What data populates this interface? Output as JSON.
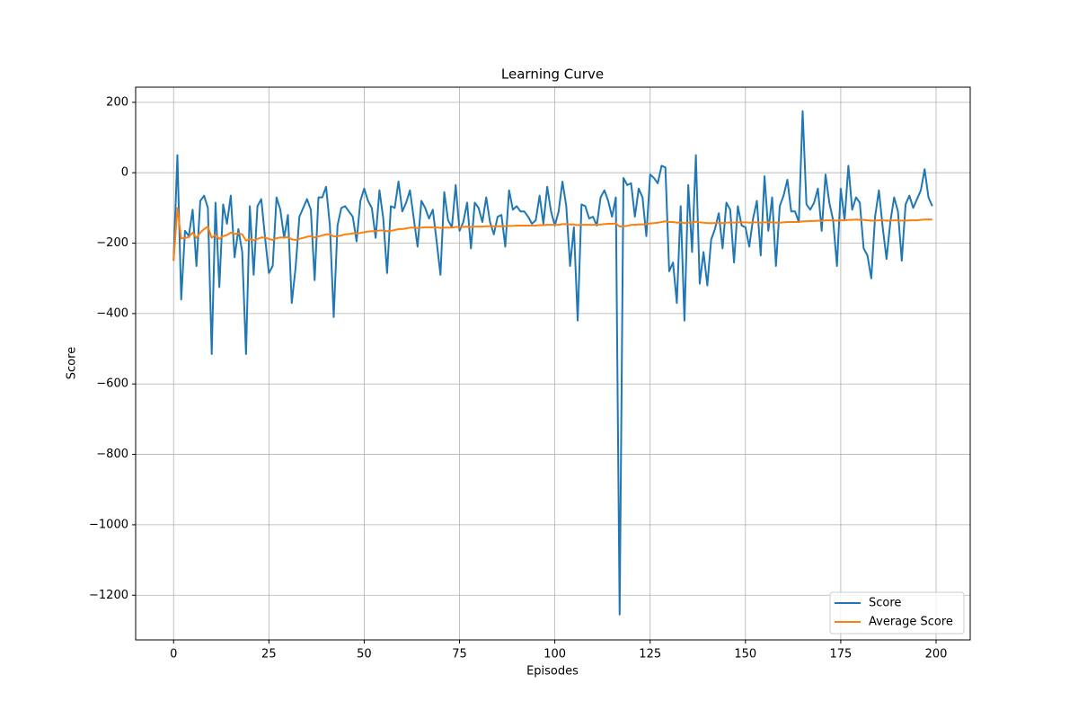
{
  "chart_data": {
    "type": "line",
    "title": "Learning Curve",
    "x_label": "Episodes",
    "y_label": "Score",
    "x": [
      0,
      1,
      2,
      3,
      4,
      5,
      6,
      7,
      8,
      9,
      10,
      11,
      12,
      13,
      14,
      15,
      16,
      17,
      18,
      19,
      20,
      21,
      22,
      23,
      24,
      25,
      26,
      27,
      28,
      29,
      30,
      31,
      32,
      33,
      34,
      35,
      36,
      37,
      38,
      39,
      40,
      41,
      42,
      43,
      44,
      45,
      46,
      47,
      48,
      49,
      50,
      51,
      52,
      53,
      54,
      55,
      56,
      57,
      58,
      59,
      60,
      61,
      62,
      63,
      64,
      65,
      66,
      67,
      68,
      69,
      70,
      71,
      72,
      73,
      74,
      75,
      76,
      77,
      78,
      79,
      80,
      81,
      82,
      83,
      84,
      85,
      86,
      87,
      88,
      89,
      90,
      91,
      92,
      93,
      94,
      95,
      96,
      97,
      98,
      99,
      100,
      101,
      102,
      103,
      104,
      105,
      106,
      107,
      108,
      109,
      110,
      111,
      112,
      113,
      114,
      115,
      116,
      117,
      118,
      119,
      120,
      121,
      122,
      123,
      124,
      125,
      126,
      127,
      128,
      129,
      130,
      131,
      132,
      133,
      134,
      135,
      136,
      137,
      138,
      139,
      140,
      141,
      142,
      143,
      144,
      145,
      146,
      147,
      148,
      149,
      150,
      151,
      152,
      153,
      154,
      155,
      156,
      157,
      158,
      159,
      160,
      161,
      162,
      163,
      164,
      165,
      166,
      167,
      168,
      169,
      170,
      171,
      172,
      173,
      174,
      175,
      176,
      177,
      178,
      179,
      180,
      181,
      182,
      183,
      184,
      185,
      186,
      187,
      188,
      189,
      190,
      191,
      192,
      193,
      194,
      195,
      196,
      197,
      198,
      199
    ],
    "series": [
      {
        "name": "Score",
        "color": "#1f77b4",
        "values": [
          -250,
          50,
          -360,
          -165,
          -180,
          -105,
          -265,
          -80,
          -65,
          -100,
          -515,
          -85,
          -325,
          -90,
          -145,
          -65,
          -240,
          -160,
          -225,
          -515,
          -95,
          -290,
          -95,
          -75,
          -185,
          -285,
          -265,
          -70,
          -105,
          -185,
          -120,
          -370,
          -270,
          -125,
          -100,
          -75,
          -105,
          -305,
          -70,
          -70,
          -40,
          -150,
          -410,
          -150,
          -100,
          -95,
          -110,
          -125,
          -195,
          -80,
          -45,
          -80,
          -100,
          -185,
          -50,
          -130,
          -285,
          -95,
          -100,
          -25,
          -110,
          -85,
          -50,
          -130,
          -210,
          -80,
          -100,
          -130,
          -105,
          -195,
          -290,
          -55,
          -135,
          -155,
          -35,
          -165,
          -140,
          -85,
          -215,
          -85,
          -100,
          -140,
          -70,
          -140,
          -175,
          -125,
          -120,
          -210,
          -50,
          -105,
          -95,
          -110,
          -110,
          -125,
          -145,
          -135,
          -65,
          -145,
          -40,
          -110,
          -150,
          -110,
          -25,
          -95,
          -265,
          -155,
          -420,
          -90,
          -95,
          -130,
          -125,
          -150,
          -70,
          -50,
          -80,
          -125,
          -70,
          -1255,
          -15,
          -35,
          -30,
          -125,
          -45,
          -70,
          -180,
          -5,
          -15,
          -30,
          20,
          15,
          -280,
          -255,
          -370,
          -95,
          -420,
          -35,
          -225,
          50,
          -315,
          -225,
          -320,
          -190,
          -160,
          -115,
          -215,
          -85,
          -105,
          -255,
          -95,
          -150,
          -155,
          -210,
          -130,
          -80,
          -235,
          -10,
          -165,
          -70,
          -265,
          -95,
          -65,
          -20,
          -110,
          -110,
          -140,
          175,
          -90,
          -105,
          -85,
          -45,
          -165,
          -5,
          -85,
          -135,
          -265,
          -45,
          -135,
          20,
          -105,
          -70,
          -85,
          -215,
          -235,
          -300,
          -125,
          -50,
          -155,
          -245,
          -140,
          -70,
          -110,
          -250,
          -90,
          -65,
          -100,
          -75,
          -50,
          10,
          -70,
          -95
        ]
      },
      {
        "name": "Average Score",
        "color": "#ff7f0e",
        "values": [
          -250,
          -100,
          -187,
          -185,
          -183,
          -170,
          -185,
          -170,
          -160,
          -153,
          -185,
          -176,
          -188,
          -180,
          -177,
          -170,
          -174,
          -172,
          -175,
          -193,
          -188,
          -192,
          -188,
          -184,
          -184,
          -188,
          -191,
          -186,
          -184,
          -184,
          -183,
          -189,
          -191,
          -188,
          -185,
          -182,
          -180,
          -184,
          -181,
          -178,
          -175,
          -175,
          -181,
          -180,
          -178,
          -175,
          -174,
          -172,
          -173,
          -171,
          -169,
          -167,
          -166,
          -166,
          -164,
          -164,
          -166,
          -165,
          -163,
          -160,
          -160,
          -158,
          -156,
          -156,
          -157,
          -156,
          -155,
          -155,
          -155,
          -155,
          -157,
          -156,
          -156,
          -156,
          -154,
          -154,
          -154,
          -153,
          -154,
          -153,
          -153,
          -153,
          -152,
          -152,
          -152,
          -152,
          -152,
          -152,
          -151,
          -151,
          -150,
          -150,
          -150,
          -150,
          -150,
          -150,
          -149,
          -149,
          -148,
          -148,
          -148,
          -148,
          -146,
          -146,
          -147,
          -147,
          -149,
          -148,
          -148,
          -148,
          -148,
          -148,
          -147,
          -146,
          -145,
          -145,
          -144,
          -153,
          -152,
          -151,
          -148,
          -148,
          -147,
          -147,
          -146,
          -144,
          -143,
          -142,
          -140,
          -138,
          -140,
          -140,
          -142,
          -141,
          -143,
          -142,
          -142,
          -139,
          -141,
          -142,
          -143,
          -143,
          -143,
          -142,
          -143,
          -142,
          -141,
          -142,
          -141,
          -141,
          -141,
          -142,
          -141,
          -141,
          -142,
          -141,
          -141,
          -141,
          -142,
          -142,
          -141,
          -140,
          -140,
          -140,
          -140,
          -138,
          -138,
          -137,
          -137,
          -136,
          -137,
          -135,
          -135,
          -135,
          -136,
          -135,
          -135,
          -134,
          -134,
          -133,
          -134,
          -134,
          -135,
          -136,
          -136,
          -135,
          -135,
          -136,
          -136,
          -135,
          -135,
          -136,
          -136,
          -135,
          -135,
          -135,
          -134,
          -133,
          -133,
          -133
        ]
      }
    ],
    "xlim": [
      -9.95,
      208.95
    ],
    "ylim": [
      -1327,
      243
    ],
    "xticks": [
      0,
      25,
      50,
      75,
      100,
      125,
      150,
      175,
      200
    ],
    "yticks": [
      {
        "value": -1200,
        "label": "−1200"
      },
      {
        "value": -1000,
        "label": "−1000"
      },
      {
        "value": -800,
        "label": "−800"
      },
      {
        "value": -600,
        "label": "−600"
      },
      {
        "value": -400,
        "label": "−400"
      },
      {
        "value": -200,
        "label": "−200"
      },
      0,
      200
    ],
    "grid": true,
    "legend": "lower right"
  }
}
